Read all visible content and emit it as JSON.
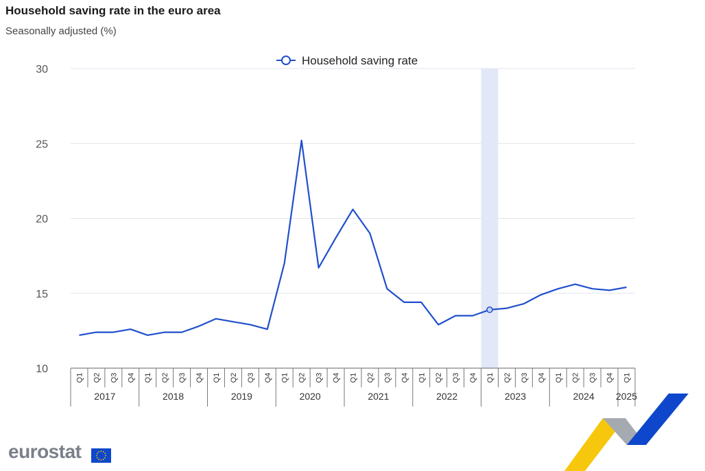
{
  "header": {
    "title": "Household saving rate in the euro area",
    "subtitle": "Seasonally adjusted (%)"
  },
  "brand": {
    "logo_text": "eurostat",
    "flag_icon": "eu-flag-icon",
    "ribbon_icon": "eurostat-ribbon-icon"
  },
  "colors": {
    "series": "#1f4fcc",
    "highlight": "#e3e8f8",
    "grid": "#e1e4ec",
    "ribbon_yellow": "#f6c400",
    "ribbon_grey": "#9a9ea6",
    "ribbon_blue": "#0e47cb"
  },
  "chart_data": {
    "type": "line",
    "title": "Household saving rate in the euro area",
    "subtitle": "Seasonally adjusted (%)",
    "ylim": [
      10,
      30
    ],
    "yticks": [
      10,
      15,
      20,
      25,
      30
    ],
    "grid": true,
    "legend": "top-center",
    "categories": [
      "2017 Q1",
      "2017 Q2",
      "2017 Q3",
      "2017 Q4",
      "2018 Q1",
      "2018 Q2",
      "2018 Q3",
      "2018 Q4",
      "2019 Q1",
      "2019 Q2",
      "2019 Q3",
      "2019 Q4",
      "2020 Q1",
      "2020 Q2",
      "2020 Q3",
      "2020 Q4",
      "2021 Q1",
      "2021 Q2",
      "2021 Q3",
      "2021 Q4",
      "2022 Q1",
      "2022 Q2",
      "2022 Q3",
      "2022 Q4",
      "2023 Q1",
      "2023 Q2",
      "2023 Q3",
      "2023 Q4",
      "2024 Q1",
      "2024 Q2",
      "2024 Q3",
      "2024 Q4",
      "2025 Q1"
    ],
    "quarter_labels": [
      "Q1",
      "Q2",
      "Q3",
      "Q4"
    ],
    "years": [
      "2017",
      "2018",
      "2019",
      "2020",
      "2021",
      "2022",
      "2023",
      "2024",
      "2025"
    ],
    "series": [
      {
        "name": "Household saving rate",
        "values": [
          12.2,
          12.4,
          12.4,
          12.6,
          12.2,
          12.4,
          12.4,
          12.8,
          13.3,
          13.1,
          12.9,
          12.6,
          17.0,
          25.2,
          16.7,
          18.7,
          20.6,
          19.0,
          15.3,
          14.4,
          14.4,
          12.9,
          13.5,
          13.5,
          13.9,
          14.0,
          14.3,
          14.9,
          15.3,
          15.6,
          15.3,
          15.2,
          15.4
        ]
      }
    ],
    "highlight_category": "2023 Q1"
  }
}
